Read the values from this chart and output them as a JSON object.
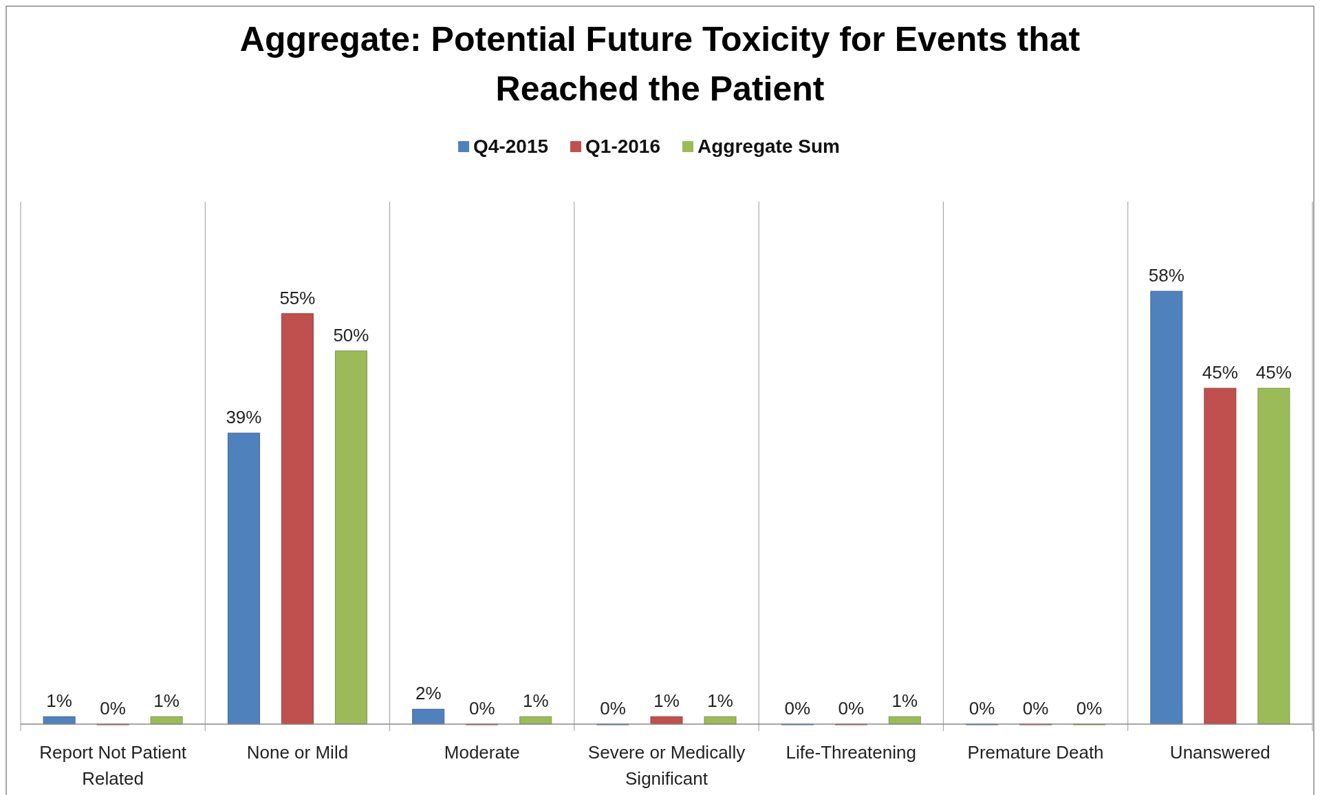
{
  "chart_data": {
    "type": "bar",
    "title": "Aggregate: Potential Future Toxicity for Events that Reached the Patient",
    "categories": [
      "Report Not Patient Related",
      "None or Mild",
      "Moderate",
      "Severe or Medically Significant",
      "Life-Threatening",
      "Premature Death",
      "Unanswered"
    ],
    "series": [
      {
        "name": "Q4-2015",
        "color": "#4f81bd",
        "values": [
          1,
          39,
          2,
          0,
          0,
          0,
          58
        ],
        "value_labels": [
          "1%",
          "39%",
          "2%",
          "0%",
          "0%",
          "0%",
          "58%"
        ]
      },
      {
        "name": "Q1-2016",
        "color": "#c0504d",
        "values": [
          0,
          55,
          0,
          1,
          0,
          0,
          45
        ],
        "value_labels": [
          "0%",
          "55%",
          "0%",
          "1%",
          "0%",
          "0%",
          "45%"
        ]
      },
      {
        "name": "Aggregate Sum",
        "color": "#9bbb59",
        "values": [
          1,
          50,
          1,
          1,
          1,
          0,
          45
        ],
        "value_labels": [
          "1%",
          "50%",
          "1%",
          "1%",
          "1%",
          "0%",
          "45%"
        ]
      }
    ],
    "ylim": [
      0,
      70
    ],
    "grid": "x",
    "legend": "top"
  }
}
